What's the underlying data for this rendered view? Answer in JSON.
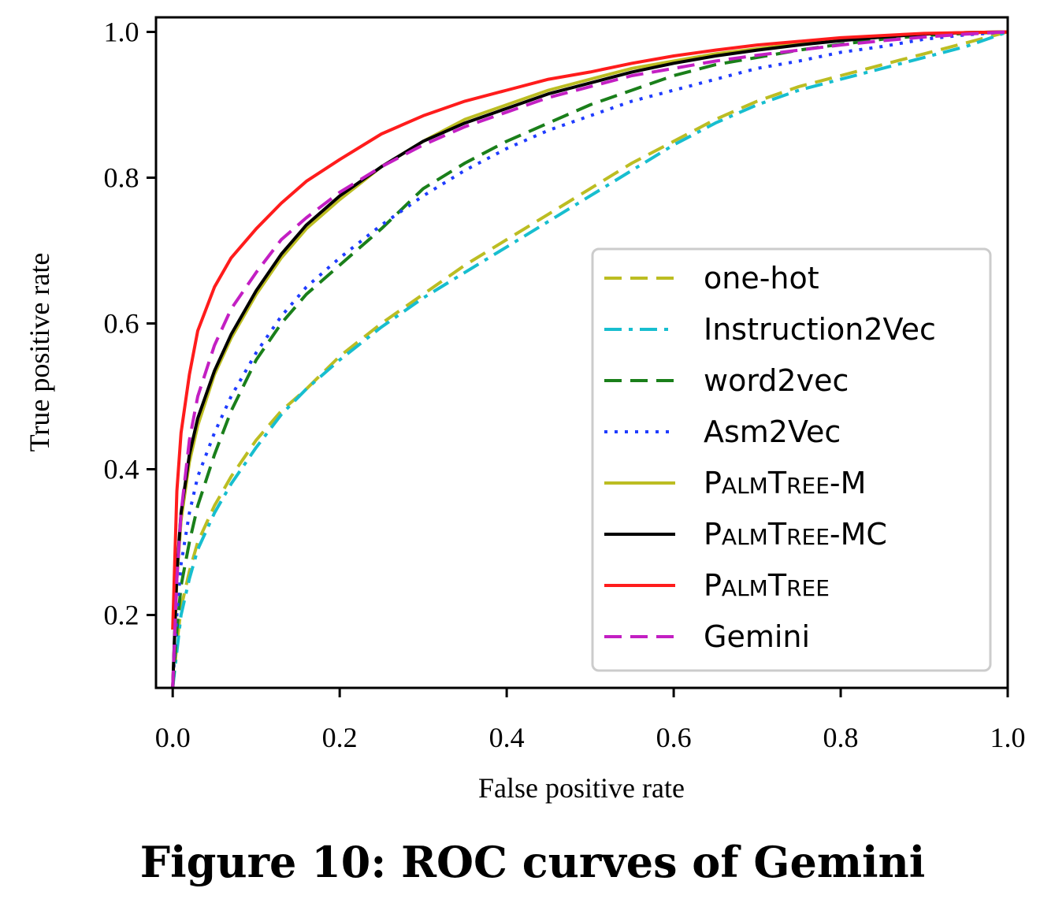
{
  "caption": "Figure 10: ROC curves of Gemini",
  "chart_data": {
    "type": "line",
    "title": "",
    "xlabel": "False positive rate",
    "ylabel": "True positive rate",
    "xlim": [
      -0.02,
      1.0
    ],
    "ylim": [
      0.1,
      1.02
    ],
    "xticks": [
      0.0,
      0.2,
      0.4,
      0.6,
      0.8,
      1.0
    ],
    "yticks": [
      0.2,
      0.4,
      0.6,
      0.8,
      1.0
    ],
    "xtick_labels": [
      "0.0",
      "0.2",
      "0.4",
      "0.6",
      "0.8",
      "1.0"
    ],
    "ytick_labels": [
      "0.2",
      "0.4",
      "0.6",
      "0.8",
      "1.0"
    ],
    "grid": false,
    "legend_position": "lower-right",
    "series": [
      {
        "name": "one-hot",
        "color": "#bcbd22",
        "style": "dashed",
        "x": [
          0.0,
          0.005,
          0.01,
          0.02,
          0.03,
          0.05,
          0.07,
          0.1,
          0.13,
          0.16,
          0.2,
          0.25,
          0.3,
          0.35,
          0.4,
          0.45,
          0.5,
          0.55,
          0.6,
          0.65,
          0.7,
          0.75,
          0.8,
          0.85,
          0.9,
          0.95,
          1.0
        ],
        "y": [
          0.1,
          0.16,
          0.21,
          0.26,
          0.3,
          0.35,
          0.39,
          0.44,
          0.48,
          0.51,
          0.555,
          0.6,
          0.64,
          0.68,
          0.715,
          0.75,
          0.785,
          0.82,
          0.85,
          0.88,
          0.905,
          0.925,
          0.94,
          0.955,
          0.97,
          0.985,
          1.0
        ]
      },
      {
        "name": "Instruction2Vec",
        "color": "#17becf",
        "style": "dashdot",
        "x": [
          0.0,
          0.005,
          0.01,
          0.02,
          0.03,
          0.05,
          0.07,
          0.1,
          0.13,
          0.16,
          0.2,
          0.25,
          0.3,
          0.35,
          0.4,
          0.45,
          0.5,
          0.55,
          0.6,
          0.65,
          0.7,
          0.75,
          0.8,
          0.85,
          0.9,
          0.95,
          1.0
        ],
        "y": [
          0.1,
          0.15,
          0.2,
          0.25,
          0.29,
          0.34,
          0.38,
          0.43,
          0.475,
          0.51,
          0.55,
          0.595,
          0.635,
          0.67,
          0.705,
          0.74,
          0.775,
          0.81,
          0.845,
          0.875,
          0.9,
          0.92,
          0.935,
          0.95,
          0.965,
          0.98,
          1.0
        ]
      },
      {
        "name": "word2vec",
        "color": "#1a7f1a",
        "style": "dashed",
        "x": [
          0.0,
          0.005,
          0.01,
          0.02,
          0.03,
          0.05,
          0.07,
          0.1,
          0.13,
          0.16,
          0.2,
          0.25,
          0.3,
          0.35,
          0.4,
          0.45,
          0.5,
          0.55,
          0.6,
          0.65,
          0.7,
          0.75,
          0.8,
          0.85,
          0.9,
          0.95,
          1.0
        ],
        "y": [
          0.1,
          0.18,
          0.24,
          0.3,
          0.35,
          0.42,
          0.48,
          0.55,
          0.6,
          0.64,
          0.68,
          0.73,
          0.785,
          0.82,
          0.85,
          0.875,
          0.9,
          0.92,
          0.94,
          0.955,
          0.965,
          0.975,
          0.983,
          0.99,
          0.995,
          0.998,
          1.0
        ]
      },
      {
        "name": "Asm2Vec",
        "color": "#1f3cff",
        "style": "dotted",
        "x": [
          0.0,
          0.005,
          0.01,
          0.02,
          0.03,
          0.05,
          0.07,
          0.1,
          0.13,
          0.16,
          0.2,
          0.25,
          0.3,
          0.35,
          0.4,
          0.45,
          0.5,
          0.55,
          0.6,
          0.65,
          0.7,
          0.75,
          0.8,
          0.85,
          0.9,
          0.95,
          1.0
        ],
        "y": [
          0.1,
          0.2,
          0.27,
          0.34,
          0.39,
          0.45,
          0.5,
          0.56,
          0.61,
          0.65,
          0.69,
          0.735,
          0.775,
          0.81,
          0.84,
          0.865,
          0.885,
          0.905,
          0.92,
          0.935,
          0.95,
          0.96,
          0.972,
          0.98,
          0.99,
          0.996,
          1.0
        ]
      },
      {
        "name": "PalmTree-M",
        "color": "#bcbd22",
        "style": "solid",
        "x": [
          0.0,
          0.005,
          0.01,
          0.02,
          0.03,
          0.05,
          0.07,
          0.1,
          0.13,
          0.16,
          0.2,
          0.25,
          0.3,
          0.35,
          0.4,
          0.45,
          0.5,
          0.55,
          0.6,
          0.65,
          0.7,
          0.75,
          0.8,
          0.85,
          0.9,
          0.95,
          1.0
        ],
        "y": [
          0.1,
          0.25,
          0.33,
          0.41,
          0.46,
          0.53,
          0.58,
          0.64,
          0.69,
          0.73,
          0.77,
          0.815,
          0.85,
          0.88,
          0.9,
          0.92,
          0.935,
          0.95,
          0.96,
          0.97,
          0.977,
          0.984,
          0.99,
          0.994,
          0.997,
          0.999,
          1.0
        ]
      },
      {
        "name": "PalmTree-MC",
        "color": "#000000",
        "style": "solid",
        "x": [
          0.0,
          0.005,
          0.01,
          0.02,
          0.03,
          0.05,
          0.07,
          0.1,
          0.13,
          0.16,
          0.2,
          0.25,
          0.3,
          0.35,
          0.4,
          0.45,
          0.5,
          0.55,
          0.6,
          0.65,
          0.7,
          0.75,
          0.8,
          0.85,
          0.9,
          0.95,
          1.0
        ],
        "y": [
          0.1,
          0.26,
          0.34,
          0.42,
          0.47,
          0.535,
          0.585,
          0.645,
          0.695,
          0.735,
          0.775,
          0.815,
          0.85,
          0.875,
          0.895,
          0.915,
          0.93,
          0.945,
          0.957,
          0.967,
          0.975,
          0.982,
          0.988,
          0.993,
          0.997,
          0.999,
          1.0
        ]
      },
      {
        "name": "PalmTree",
        "color": "#ff1c1c",
        "style": "solid",
        "x": [
          0.0,
          0.005,
          0.01,
          0.02,
          0.03,
          0.05,
          0.07,
          0.1,
          0.13,
          0.16,
          0.2,
          0.25,
          0.3,
          0.35,
          0.4,
          0.45,
          0.5,
          0.55,
          0.6,
          0.65,
          0.7,
          0.75,
          0.8,
          0.85,
          0.9,
          0.95,
          1.0
        ],
        "y": [
          0.18,
          0.37,
          0.45,
          0.53,
          0.59,
          0.65,
          0.69,
          0.73,
          0.765,
          0.795,
          0.825,
          0.86,
          0.885,
          0.905,
          0.92,
          0.935,
          0.945,
          0.957,
          0.967,
          0.975,
          0.982,
          0.987,
          0.992,
          0.995,
          0.998,
          0.999,
          1.0
        ]
      },
      {
        "name": "Gemini",
        "color": "#c31fc3",
        "style": "dashed",
        "x": [
          0.0,
          0.005,
          0.01,
          0.02,
          0.03,
          0.05,
          0.07,
          0.1,
          0.13,
          0.16,
          0.2,
          0.25,
          0.3,
          0.35,
          0.4,
          0.45,
          0.5,
          0.55,
          0.6,
          0.65,
          0.7,
          0.75,
          0.8,
          0.85,
          0.9,
          0.95,
          1.0
        ],
        "y": [
          0.1,
          0.25,
          0.34,
          0.44,
          0.5,
          0.57,
          0.62,
          0.67,
          0.715,
          0.745,
          0.78,
          0.815,
          0.845,
          0.87,
          0.89,
          0.91,
          0.925,
          0.94,
          0.95,
          0.96,
          0.968,
          0.975,
          0.982,
          0.988,
          0.993,
          0.997,
          1.0
        ]
      }
    ]
  }
}
